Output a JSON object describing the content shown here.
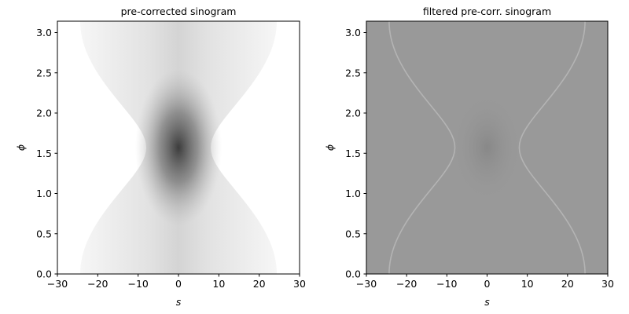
{
  "chart_data": [
    {
      "type": "image",
      "title": "pre-corrected sinogram",
      "xlabel": "s",
      "ylabel": "ϕ",
      "colormap": "gray_r",
      "xlim": [
        -30,
        30
      ],
      "ylim": [
        0,
        3.14159
      ],
      "xticks": [
        {
          "value": -30,
          "label": "−30"
        },
        {
          "value": -20,
          "label": "−20"
        },
        {
          "value": -10,
          "label": "−10"
        },
        0,
        10,
        20,
        30
      ],
      "yticks": [
        {
          "value": 0,
          "label": "0.0"
        },
        0.5,
        {
          "value": 1,
          "label": "1.0"
        },
        1.5,
        {
          "value": 2,
          "label": "2.0"
        },
        2.5,
        {
          "value": 3,
          "label": "3.0"
        }
      ]
    },
    {
      "type": "image",
      "title": "filtered pre-corr. sinogram",
      "xlabel": "s",
      "ylabel": "ϕ",
      "colormap": "gray",
      "xlim": [
        -30,
        30
      ],
      "ylim": [
        0,
        3.14159
      ],
      "xticks": [
        {
          "value": -30,
          "label": "−30"
        },
        {
          "value": -20,
          "label": "−20"
        },
        {
          "value": -10,
          "label": "−10"
        },
        0,
        10,
        20,
        30
      ],
      "yticks": [
        {
          "value": 0,
          "label": "0.0"
        },
        0.5,
        {
          "value": 1,
          "label": "1.0"
        },
        1.5,
        {
          "value": 2,
          "label": "2.0"
        },
        2.5,
        {
          "value": 3,
          "label": "3.0"
        }
      ]
    }
  ]
}
